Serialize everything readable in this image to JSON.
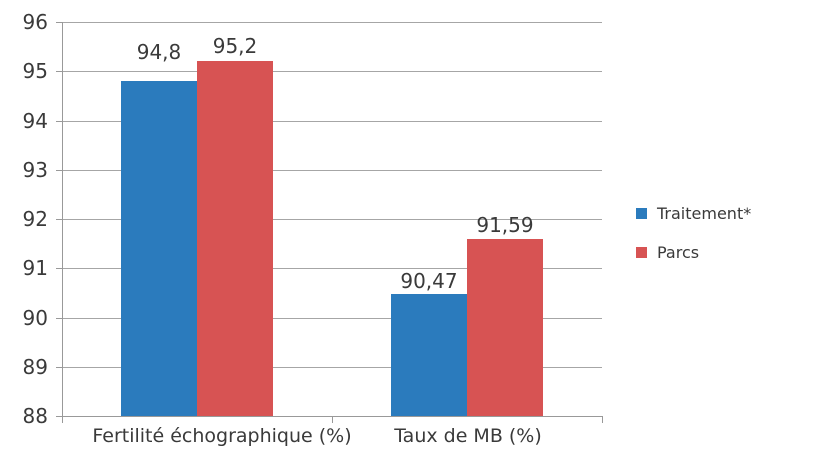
{
  "chart_data": {
    "type": "bar",
    "title": "",
    "xlabel": "",
    "ylabel": "",
    "categories": [
      "Fertilité échographique (%)",
      "Taux de MB (%)"
    ],
    "series": [
      {
        "name": "Traitement*",
        "color": "#2b7bbd",
        "values": [
          94.8,
          90.47
        ],
        "value_labels": [
          "94,8",
          "90,47"
        ]
      },
      {
        "name": "Parcs",
        "color": "#d75353",
        "values": [
          95.2,
          91.59
        ],
        "value_labels": [
          "95,2",
          "91,59"
        ]
      }
    ],
    "ylim": [
      88,
      96
    ],
    "yticks": [
      88,
      89,
      90,
      91,
      92,
      93,
      94,
      95,
      96
    ],
    "grid": true,
    "legend_position": "right"
  },
  "colors": {
    "series_blue": "#2b7bbd",
    "series_red": "#d75353",
    "gridline": "#a6a6a6",
    "axis": "#999999",
    "text": "#3a3a3a",
    "background": "#ffffff"
  }
}
